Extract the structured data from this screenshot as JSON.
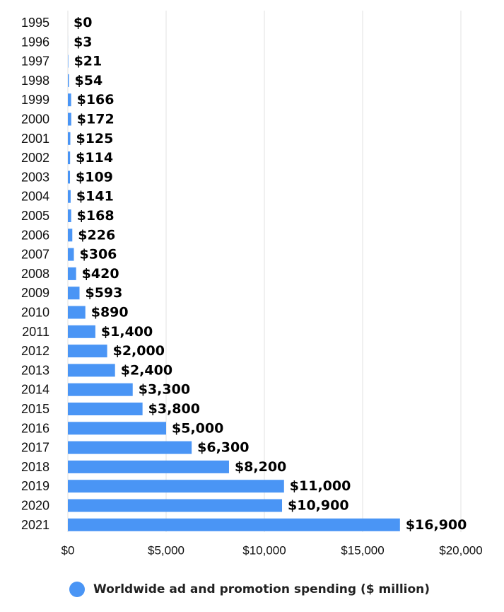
{
  "chart_data": {
    "type": "bar",
    "orientation": "horizontal",
    "categories": [
      "1995",
      "1996",
      "1997",
      "1998",
      "1999",
      "2000",
      "2001",
      "2002",
      "2003",
      "2004",
      "2005",
      "2006",
      "2007",
      "2008",
      "2009",
      "2010",
      "2011",
      "2012",
      "2013",
      "2014",
      "2015",
      "2016",
      "2017",
      "2018",
      "2019",
      "2020",
      "2021"
    ],
    "series": [
      {
        "name": "Worldwide ad and promotion spending ($ million)",
        "values": [
          0,
          3,
          21,
          54,
          166,
          172,
          125,
          114,
          109,
          141,
          168,
          226,
          306,
          420,
          593,
          890,
          1400,
          2000,
          2400,
          3300,
          3800,
          5000,
          6300,
          8200,
          11000,
          10900,
          16900
        ],
        "labels": [
          "$0",
          "$3",
          "$21",
          "$54",
          "$166",
          "$172",
          "$125",
          "$114",
          "$109",
          "$141",
          "$168",
          "$226",
          "$306",
          "$420",
          "$593",
          "$890",
          "$1,400",
          "$2,000",
          "$2,400",
          "$3,300",
          "$3,800",
          "$5,000",
          "$6,300",
          "$8,200",
          "$11,000",
          "$10,900",
          "$16,900"
        ],
        "color": "#4a95f5"
      }
    ],
    "xlim": [
      0,
      20000
    ],
    "xticks": [
      0,
      5000,
      10000,
      15000,
      20000
    ],
    "xtick_labels": [
      "$0",
      "$5,000",
      "$10,000",
      "$15,000",
      "$20,000"
    ],
    "grid": "vertical",
    "legend_position": "bottom",
    "title": "",
    "xlabel": "",
    "ylabel": ""
  }
}
